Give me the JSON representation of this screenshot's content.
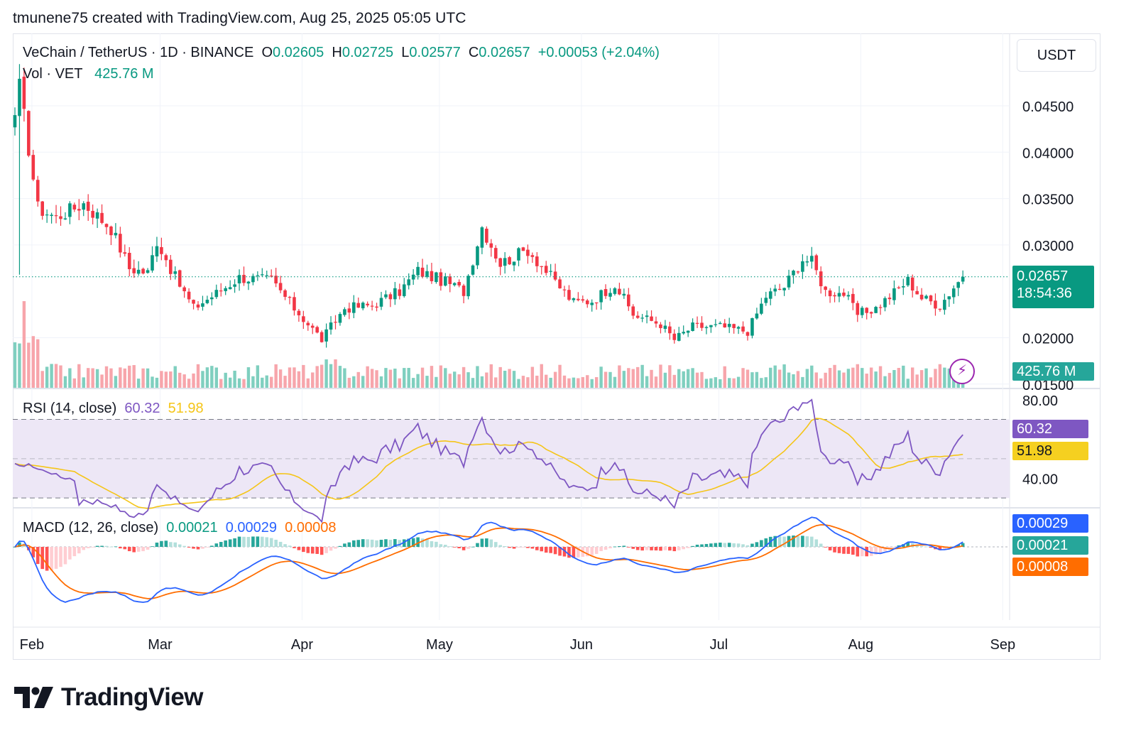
{
  "header": {
    "credit": "tmunene75 created with TradingView.com, Aug 25, 2025 05:05 UTC"
  },
  "legend": {
    "symbol": "VeChain / TetherUS · 1D · BINANCE",
    "o_label": "O",
    "o_value": "0.02605",
    "h_label": "H",
    "h_value": "0.02725",
    "l_label": "L",
    "l_value": "0.02577",
    "c_label": "C",
    "c_value": "0.02657",
    "change": "+0.00053 (+2.04%)",
    "vol_label": "Vol · VET",
    "vol_value": "425.76 M",
    "rsi_label": "RSI (14, close)",
    "rsi_value": "60.32",
    "rsi_ma_value": "51.98",
    "macd_label": "MACD (12, 26, close)",
    "macd_hist_value": "0.00021",
    "macd_value": "0.00029",
    "macd_signal_value": "0.00008"
  },
  "scale": {
    "currency": "USDT",
    "price_ticks": [
      "0.04500",
      "0.04000",
      "0.03500",
      "0.03000",
      "0.02000",
      "0.01500"
    ],
    "rsi_ticks": [
      "80.00",
      "40.00"
    ],
    "last_price": "0.02657",
    "countdown": "18:54:36",
    "volume_tag": "425.76 M",
    "rsi_tag": "60.32",
    "rsi_ma_tag": "51.98",
    "macd_tag": "0.00029",
    "hist_tag": "0.00021",
    "signal_tag": "0.00008"
  },
  "time_axis": [
    "Feb",
    "Mar",
    "Apr",
    "May",
    "Jun",
    "Jul",
    "Aug",
    "Sep"
  ],
  "colors": {
    "up": "#089981",
    "down": "#f23645",
    "vol_up": "#7fcfbf",
    "vol_down": "#f7a5ab",
    "rsi": "#7e57c2",
    "rsi_ma": "#f5c518",
    "rsi_band": "#ede7f6",
    "macd": "#2962ff",
    "signal": "#ff6d00",
    "grid": "#f0f3fa"
  },
  "branding": {
    "logo_text": "TradingView",
    "logo_icon": "tradingview-logo-icon"
  },
  "chart_data": {
    "type": "candlestick",
    "symbol": "VeChain / TetherUS",
    "interval": "1D",
    "exchange": "BINANCE",
    "x_range": [
      "2025-01-30",
      "2025-08-25"
    ],
    "price_range": [
      0.0148,
      0.0495
    ],
    "price_waypoints": [
      [
        "2025-01-30",
        0.044
      ],
      [
        "2025-01-31",
        0.047
      ],
      [
        "2025-02-02",
        0.0405
      ],
      [
        "2025-02-04",
        0.034
      ],
      [
        "2025-02-08",
        0.033
      ],
      [
        "2025-02-14",
        0.0345
      ],
      [
        "2025-02-20",
        0.0318
      ],
      [
        "2025-02-24",
        0.0275
      ],
      [
        "2025-02-28",
        0.027
      ],
      [
        "2025-03-02",
        0.0305
      ],
      [
        "2025-03-06",
        0.0265
      ],
      [
        "2025-03-10",
        0.0232
      ],
      [
        "2025-03-15",
        0.0248
      ],
      [
        "2025-03-20",
        0.0265
      ],
      [
        "2025-03-27",
        0.0262
      ],
      [
        "2025-04-01",
        0.0232
      ],
      [
        "2025-04-07",
        0.0198
      ],
      [
        "2025-04-12",
        0.0232
      ],
      [
        "2025-04-18",
        0.0235
      ],
      [
        "2025-04-24",
        0.025
      ],
      [
        "2025-04-28",
        0.0272
      ],
      [
        "2025-05-05",
        0.0258
      ],
      [
        "2025-05-08",
        0.025
      ],
      [
        "2025-05-12",
        0.032
      ],
      [
        "2025-05-16",
        0.028
      ],
      [
        "2025-05-22",
        0.0295
      ],
      [
        "2025-05-28",
        0.026
      ],
      [
        "2025-06-01",
        0.0238
      ],
      [
        "2025-06-05",
        0.024
      ],
      [
        "2025-06-10",
        0.0258
      ],
      [
        "2025-06-14",
        0.0225
      ],
      [
        "2025-06-20",
        0.0215
      ],
      [
        "2025-06-23",
        0.0198
      ],
      [
        "2025-06-27",
        0.0212
      ],
      [
        "2025-07-03",
        0.0212
      ],
      [
        "2025-07-09",
        0.0207
      ],
      [
        "2025-07-13",
        0.0245
      ],
      [
        "2025-07-17",
        0.0255
      ],
      [
        "2025-07-21",
        0.0285
      ],
      [
        "2025-07-23",
        0.0282
      ],
      [
        "2025-07-26",
        0.025
      ],
      [
        "2025-07-30",
        0.0248
      ],
      [
        "2025-08-02",
        0.0225
      ],
      [
        "2025-08-06",
        0.0232
      ],
      [
        "2025-08-11",
        0.0253
      ],
      [
        "2025-08-13",
        0.0262
      ],
      [
        "2025-08-16",
        0.0243
      ],
      [
        "2025-08-20",
        0.0235
      ],
      [
        "2025-08-23",
        0.0255
      ],
      [
        "2025-08-25",
        0.0266
      ]
    ],
    "last": {
      "open": 0.02605,
      "high": 0.02725,
      "low": 0.02577,
      "close": 0.02657,
      "change": 0.00053,
      "change_pct": 2.04
    },
    "volume_last_m": 425.76,
    "rsi": {
      "period": 14,
      "last": 60.32,
      "ma_last": 51.98,
      "upper_band": 70,
      "lower_band": 30,
      "range": [
        25,
        85
      ]
    },
    "macd": {
      "fast": 12,
      "slow": 26,
      "last_macd": 0.00029,
      "last_signal": 8e-05,
      "last_hist": 0.00021
    }
  }
}
